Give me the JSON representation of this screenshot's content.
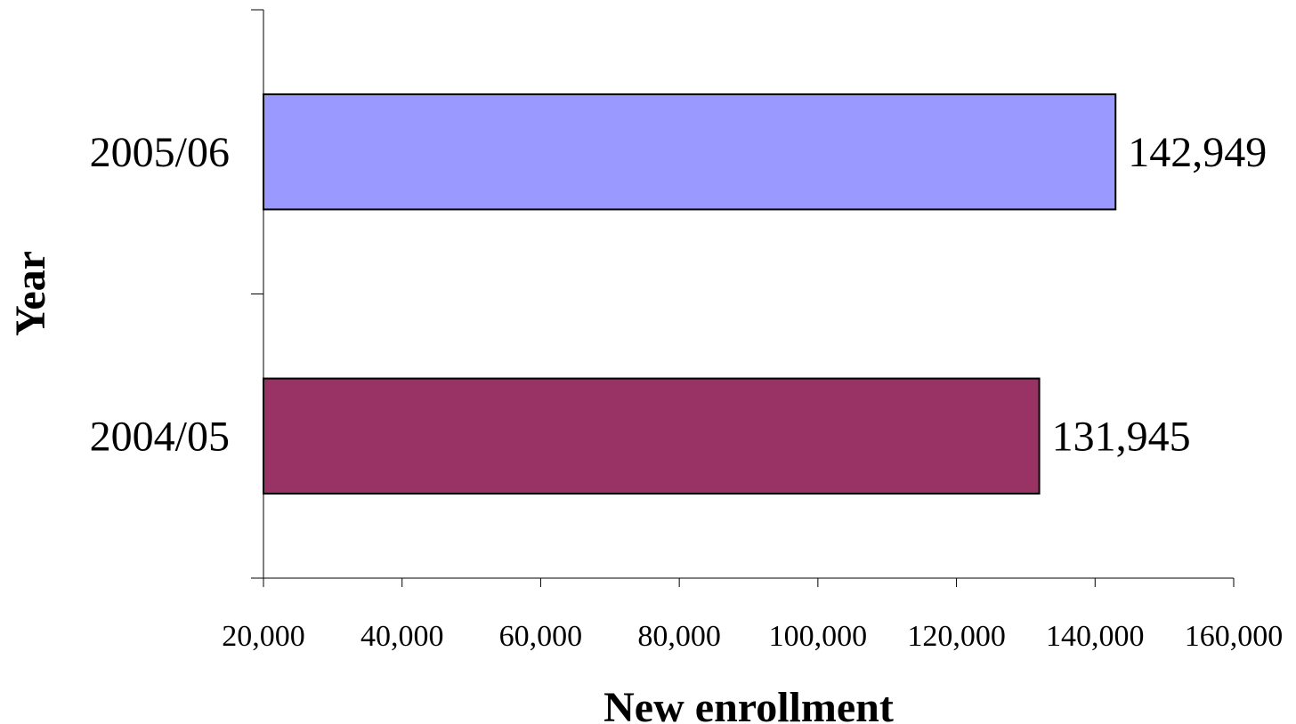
{
  "chart_data": {
    "type": "bar",
    "orientation": "horizontal",
    "categories": [
      "2004/05",
      "2005/06"
    ],
    "values": [
      131945,
      142949
    ],
    "data_labels": [
      "131,945",
      "142,949"
    ],
    "bar_colors": [
      "#993366",
      "#9999FF"
    ],
    "title": "",
    "xlabel": "New enrollment",
    "ylabel": "Year",
    "xlim": [
      20000,
      160000
    ],
    "xticks": [
      20000,
      40000,
      60000,
      80000,
      100000,
      120000,
      140000,
      160000
    ],
    "xtick_labels": [
      "20,000",
      "40,000",
      "60,000",
      "80,000",
      "100,000",
      "120,000",
      "140,000",
      "160,000"
    ],
    "grid": false,
    "legend": "none"
  }
}
